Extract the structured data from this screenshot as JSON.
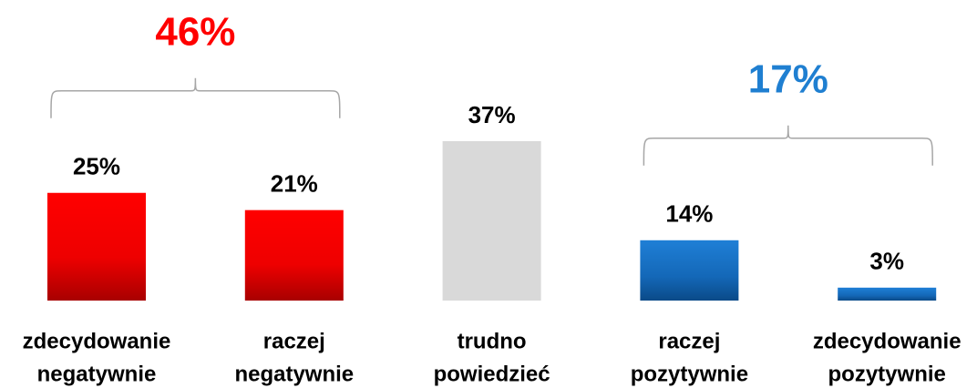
{
  "chart_data": {
    "type": "bar",
    "categories": [
      [
        "zdecydowanie",
        "negatywnie"
      ],
      [
        "raczej",
        "negatywnie"
      ],
      [
        "trudno",
        "powiedzieć"
      ],
      [
        "raczej",
        "pozytywnie"
      ],
      [
        "zdecydowanie",
        "pozytywnie"
      ]
    ],
    "values": [
      25,
      21,
      37,
      14,
      3
    ],
    "value_labels": [
      "25%",
      "21%",
      "37%",
      "14%",
      "3%"
    ],
    "colors": [
      "red",
      "red",
      "gray",
      "blue",
      "blue"
    ],
    "annotations": [
      {
        "label": "46%",
        "value": 46,
        "color": "#ff0000",
        "span": [
          0,
          1
        ]
      },
      {
        "label": "17%",
        "value": 17,
        "color": "#1f7fd1",
        "span": [
          3,
          4
        ]
      }
    ]
  }
}
